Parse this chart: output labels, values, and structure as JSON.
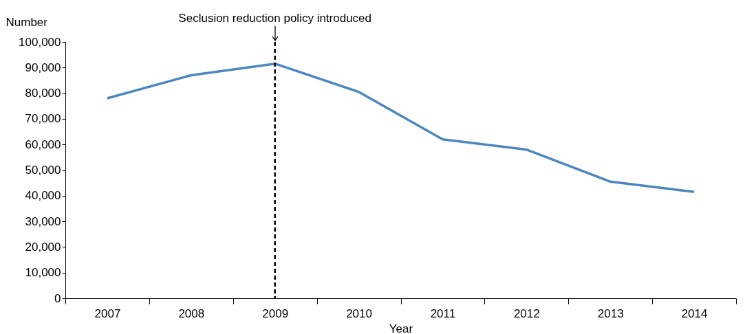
{
  "chart_data": {
    "type": "line",
    "xlabel": "Year",
    "ylabel": "Number",
    "categories": [
      "2007",
      "2008",
      "2009",
      "2010",
      "2011",
      "2012",
      "2013",
      "2014"
    ],
    "series": [
      {
        "color": "#4a87c0",
        "values": [
          78000,
          87000,
          91500,
          80500,
          62000,
          58000,
          45500,
          41500
        ]
      }
    ],
    "ylim": [
      0,
      100000
    ],
    "yticks": [
      0,
      {
        "value": 10000,
        "label": "10,000"
      },
      {
        "value": 20000,
        "label": "20,000"
      },
      {
        "value": 30000,
        "label": "30,000"
      },
      {
        "value": 40000,
        "label": "40,000"
      },
      {
        "value": 50000,
        "label": "50,000"
      },
      {
        "value": 60000,
        "label": "60,000"
      },
      {
        "value": 70000,
        "label": "70,000"
      },
      {
        "value": 80000,
        "label": "80,000"
      },
      {
        "value": 90000,
        "label": "90,000"
      },
      {
        "value": 100000,
        "label": "100,000"
      }
    ],
    "ref_lines": [
      {
        "axis": "x",
        "value": "2009",
        "label": "Seclusion reduction policy introduced",
        "color": "#000000",
        "line_style": "dashed"
      }
    ],
    "grid": false,
    "marker": "none",
    "line_style": "solid"
  }
}
